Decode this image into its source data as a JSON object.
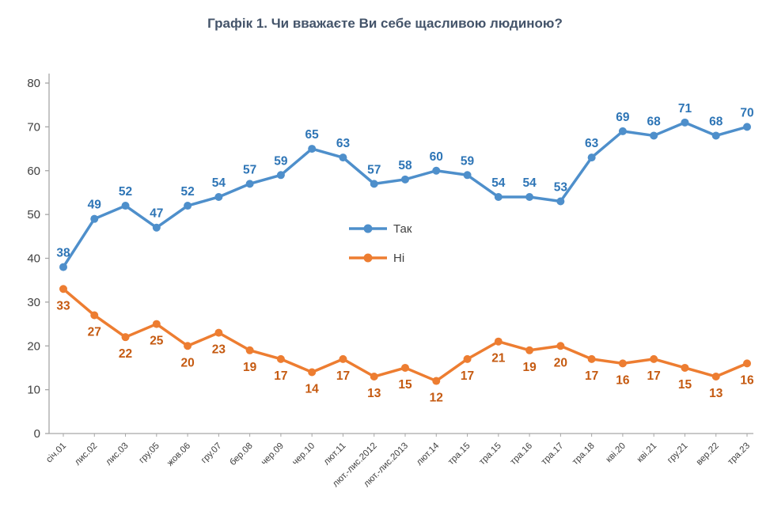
{
  "title": "Графік 1. Чи вважаєте Ви себе щасливою людиною?",
  "chart_data": {
    "type": "line",
    "title": "Графік 1. Чи вважаєте Ви себе щасливою людиною?",
    "categories": [
      "січ.01",
      "лис.02",
      "лис.03",
      "гру.05",
      "жов.06",
      "гру.07",
      "бер.08",
      "чер.09",
      "чер.10",
      "лют.11",
      "лют.-лис.2012",
      "лют.-лис.2013",
      "лют.14",
      "тра.15",
      "тра.15",
      "тра.16",
      "тра.17",
      "тра.18",
      "кві.20",
      "кві.21",
      "гру.21",
      "вер.22",
      "тра.23"
    ],
    "series": [
      {
        "name": "Так",
        "color": "#4E8FCB",
        "label_color": "#2E75B6",
        "label_position": "above",
        "values": [
          38,
          49,
          52,
          47,
          52,
          54,
          57,
          59,
          65,
          63,
          57,
          58,
          60,
          59,
          54,
          54,
          53,
          63,
          69,
          68,
          71,
          68,
          70
        ]
      },
      {
        "name": "Ні",
        "color": "#ED7D31",
        "label_color": "#C55A11",
        "label_position": "below",
        "values": [
          33,
          27,
          22,
          25,
          20,
          23,
          19,
          17,
          14,
          17,
          13,
          15,
          12,
          17,
          21,
          19,
          20,
          17,
          16,
          17,
          15,
          13,
          16
        ]
      }
    ],
    "ylim": [
      0,
      80
    ],
    "yticks": [
      0,
      10,
      20,
      30,
      40,
      50,
      60,
      70,
      80
    ],
    "xlabel": "",
    "ylabel": "",
    "grid": false,
    "legend_position": "center",
    "axis_color": "#A6A6A6",
    "tick_label_color": "#404040"
  }
}
